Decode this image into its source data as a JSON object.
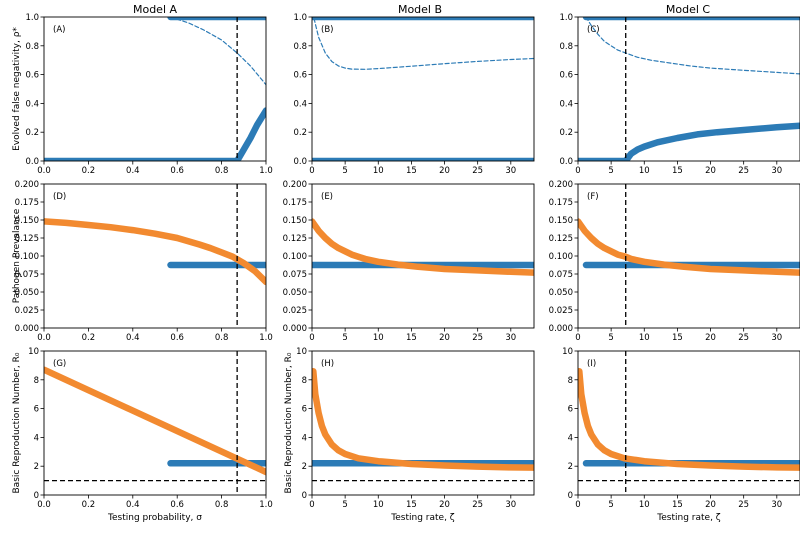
{
  "figure": {
    "column_titles": [
      "Model A",
      "Model B",
      "Model C"
    ]
  },
  "colors": {
    "blue": "#2c7bb6",
    "orange": "#f28a30",
    "black": "#000000"
  },
  "chart_data": [
    {
      "type": "line",
      "panel_label": "(A)",
      "title": "Model A",
      "xlabel": "",
      "ylabel": "Evolved false negativity, ρ*",
      "xlim": [
        0,
        1
      ],
      "ylim": [
        0,
        1
      ],
      "xticks": [
        0,
        0.2,
        0.4,
        0.6,
        0.8,
        1.0
      ],
      "xtick_labels": [
        "0.0",
        "0.2",
        "0.4",
        "0.6",
        "0.8",
        "1.0"
      ],
      "yticks": [
        0,
        0.2,
        0.4,
        0.6,
        0.8,
        1.0
      ],
      "ytick_labels": [
        "0.0",
        "0.2",
        "0.4",
        "0.6",
        "0.8",
        "1.0"
      ],
      "vline": 0.87,
      "series": [
        {
          "name": "stable-upper",
          "style": "thick",
          "color": "blue",
          "x": [
            0.57,
            1.0
          ],
          "y": [
            1.0,
            1.0
          ]
        },
        {
          "name": "stable-zero",
          "style": "thick",
          "color": "blue",
          "x": [
            0.0,
            0.87
          ],
          "y": [
            0.0,
            0.0
          ]
        },
        {
          "name": "stable-interior",
          "style": "thick",
          "color": "blue",
          "x": [
            0.87,
            0.9,
            0.93,
            0.96,
            1.0
          ],
          "y": [
            0.0,
            0.08,
            0.16,
            0.25,
            0.35
          ]
        },
        {
          "name": "unstable",
          "style": "dashed",
          "color": "blue",
          "x": [
            0.57,
            0.65,
            0.72,
            0.8,
            0.87,
            0.93,
            1.0
          ],
          "y": [
            1.0,
            0.96,
            0.91,
            0.84,
            0.75,
            0.66,
            0.53
          ]
        }
      ]
    },
    {
      "type": "line",
      "panel_label": "(B)",
      "title": "Model B",
      "xlabel": "",
      "ylabel": "",
      "xlim": [
        0,
        33.5
      ],
      "ylim": [
        0,
        1
      ],
      "xticks": [
        0,
        5,
        10,
        15,
        20,
        25,
        30
      ],
      "xtick_labels": [
        "0",
        "5",
        "10",
        "15",
        "20",
        "25",
        "30"
      ],
      "yticks": [
        0,
        0.2,
        0.4,
        0.6,
        0.8,
        1.0
      ],
      "ytick_labels": [
        "0.0",
        "0.2",
        "0.4",
        "0.6",
        "0.8",
        "1.0"
      ],
      "series": [
        {
          "name": "stable-upper",
          "style": "thick",
          "color": "blue",
          "x": [
            0,
            33.5
          ],
          "y": [
            1.0,
            1.0
          ]
        },
        {
          "name": "stable-zero",
          "style": "thick",
          "color": "blue",
          "x": [
            0,
            33.5
          ],
          "y": [
            0.0,
            0.0
          ]
        },
        {
          "name": "unstable",
          "style": "dashed",
          "color": "blue",
          "x": [
            0.3,
            1,
            2,
            3,
            4,
            5,
            6,
            8,
            10,
            15,
            20,
            25,
            30,
            33.5
          ],
          "y": [
            0.99,
            0.86,
            0.75,
            0.69,
            0.66,
            0.645,
            0.638,
            0.637,
            0.642,
            0.658,
            0.676,
            0.692,
            0.705,
            0.712
          ]
        }
      ]
    },
    {
      "type": "line",
      "panel_label": "(C)",
      "title": "Model C",
      "xlabel": "",
      "ylabel": "",
      "xlim": [
        0,
        33.5
      ],
      "ylim": [
        0,
        1
      ],
      "xticks": [
        0,
        5,
        10,
        15,
        20,
        25,
        30
      ],
      "xtick_labels": [
        "0",
        "5",
        "10",
        "15",
        "20",
        "25",
        "30"
      ],
      "yticks": [
        0,
        0.2,
        0.4,
        0.6,
        0.8,
        1.0
      ],
      "ytick_labels": [
        "0.0",
        "0.2",
        "0.4",
        "0.6",
        "0.8",
        "1.0"
      ],
      "vline": 7.2,
      "series": [
        {
          "name": "stable-upper",
          "style": "thick",
          "color": "blue",
          "x": [
            1.2,
            33.5
          ],
          "y": [
            1.0,
            1.0
          ]
        },
        {
          "name": "stable-zero",
          "style": "thick",
          "color": "blue",
          "x": [
            0,
            7.2
          ],
          "y": [
            0.0,
            0.0
          ]
        },
        {
          "name": "stable-interior",
          "style": "thick",
          "color": "blue",
          "x": [
            7.2,
            8,
            9,
            10,
            12,
            15,
            18,
            21,
            25,
            30,
            33.5
          ],
          "y": [
            0.0,
            0.05,
            0.08,
            0.1,
            0.13,
            0.16,
            0.185,
            0.2,
            0.215,
            0.235,
            0.245
          ]
        },
        {
          "name": "unstable",
          "style": "dashed",
          "color": "blue",
          "x": [
            1.2,
            2,
            3,
            4,
            5,
            6,
            7.2,
            9,
            11,
            14,
            17,
            20,
            25,
            30,
            33.5
          ],
          "y": [
            1.0,
            0.94,
            0.88,
            0.83,
            0.8,
            0.77,
            0.75,
            0.72,
            0.7,
            0.68,
            0.66,
            0.645,
            0.63,
            0.615,
            0.605
          ]
        }
      ]
    },
    {
      "type": "line",
      "panel_label": "(D)",
      "xlabel": "",
      "ylabel": "Pathogen Prevalance",
      "xlim": [
        0,
        1
      ],
      "ylim": [
        0,
        0.2
      ],
      "xticks": [
        0,
        0.2,
        0.4,
        0.6,
        0.8,
        1.0
      ],
      "xtick_labels": [
        "0.0",
        "0.2",
        "0.4",
        "0.6",
        "0.8",
        "1.0"
      ],
      "yticks": [
        0,
        0.025,
        0.05,
        0.075,
        0.1,
        0.125,
        0.15,
        0.175,
        0.2
      ],
      "ytick_labels": [
        "0.000",
        "0.025",
        "0.050",
        "0.075",
        "0.100",
        "0.125",
        "0.150",
        "0.175",
        "0.200"
      ],
      "vline": 0.87,
      "series": [
        {
          "name": "blue-plateau",
          "style": "thick",
          "color": "blue",
          "x": [
            0.57,
            1.0
          ],
          "y": [
            0.0875,
            0.0875
          ]
        },
        {
          "name": "orange-curve",
          "style": "thick",
          "color": "orange",
          "x": [
            0,
            0.1,
            0.2,
            0.3,
            0.4,
            0.5,
            0.6,
            0.7,
            0.75,
            0.8,
            0.85,
            0.9,
            0.95,
            1.0
          ],
          "y": [
            0.148,
            0.146,
            0.143,
            0.14,
            0.136,
            0.131,
            0.125,
            0.116,
            0.111,
            0.105,
            0.099,
            0.09,
            0.079,
            0.064
          ]
        }
      ]
    },
    {
      "type": "line",
      "panel_label": "(E)",
      "xlabel": "",
      "ylabel": "",
      "xlim": [
        0,
        33.5
      ],
      "ylim": [
        0,
        0.2
      ],
      "xticks": [
        0,
        5,
        10,
        15,
        20,
        25,
        30
      ],
      "xtick_labels": [
        "0",
        "5",
        "10",
        "15",
        "20",
        "25",
        "30"
      ],
      "yticks": [
        0,
        0.025,
        0.05,
        0.075,
        0.1,
        0.125,
        0.15,
        0.175,
        0.2
      ],
      "ytick_labels": [
        "0.000",
        "0.025",
        "0.050",
        "0.075",
        "0.100",
        "0.125",
        "0.150",
        "0.175",
        "0.200"
      ],
      "series": [
        {
          "name": "blue-plateau",
          "style": "thick",
          "color": "blue",
          "x": [
            0,
            33.5
          ],
          "y": [
            0.0875,
            0.0875
          ]
        },
        {
          "name": "orange-curve",
          "style": "thick",
          "color": "orange",
          "x": [
            0,
            1,
            2,
            3,
            4,
            6,
            8,
            10,
            13,
            16,
            20,
            25,
            30,
            33.5
          ],
          "y": [
            0.148,
            0.135,
            0.125,
            0.117,
            0.111,
            0.102,
            0.096,
            0.092,
            0.088,
            0.085,
            0.082,
            0.08,
            0.078,
            0.077
          ]
        }
      ]
    },
    {
      "type": "line",
      "panel_label": "(F)",
      "xlabel": "",
      "ylabel": "",
      "xlim": [
        0,
        33.5
      ],
      "ylim": [
        0,
        0.2
      ],
      "xticks": [
        0,
        5,
        10,
        15,
        20,
        25,
        30
      ],
      "xtick_labels": [
        "0",
        "5",
        "10",
        "15",
        "20",
        "25",
        "30"
      ],
      "yticks": [
        0,
        0.025,
        0.05,
        0.075,
        0.1,
        0.125,
        0.15,
        0.175,
        0.2
      ],
      "ytick_labels": [
        "0.000",
        "0.025",
        "0.050",
        "0.075",
        "0.100",
        "0.125",
        "0.150",
        "0.175",
        "0.200"
      ],
      "vline": 7.2,
      "series": [
        {
          "name": "blue-plateau",
          "style": "thick",
          "color": "blue",
          "x": [
            1.2,
            33.5
          ],
          "y": [
            0.0875,
            0.0875
          ]
        },
        {
          "name": "orange-curve",
          "style": "thick",
          "color": "orange",
          "x": [
            0,
            1,
            2,
            3,
            4,
            6,
            7.2,
            8,
            10,
            13,
            16,
            20,
            25,
            30,
            33.5
          ],
          "y": [
            0.148,
            0.135,
            0.125,
            0.117,
            0.111,
            0.102,
            0.099,
            0.096,
            0.092,
            0.088,
            0.085,
            0.082,
            0.08,
            0.078,
            0.077
          ]
        }
      ]
    },
    {
      "type": "line",
      "panel_label": "(G)",
      "xlabel": "Testing probability, σ",
      "ylabel": "Basic Reproduction Number, R₀",
      "xlim": [
        0,
        1
      ],
      "ylim": [
        0,
        10
      ],
      "xticks": [
        0,
        0.2,
        0.4,
        0.6,
        0.8,
        1.0
      ],
      "xtick_labels": [
        "0.0",
        "0.2",
        "0.4",
        "0.6",
        "0.8",
        "1.0"
      ],
      "yticks": [
        0,
        2,
        4,
        6,
        8,
        10
      ],
      "ytick_labels": [
        "0",
        "2",
        "4",
        "6",
        "8",
        "10"
      ],
      "vline": 0.87,
      "hline": 1.0,
      "series": [
        {
          "name": "blue-plateau",
          "style": "thick",
          "color": "blue",
          "x": [
            0.57,
            1.0
          ],
          "y": [
            2.2,
            2.2
          ]
        },
        {
          "name": "orange-line",
          "style": "thick",
          "color": "orange",
          "x": [
            0,
            1.0
          ],
          "y": [
            8.7,
            1.6
          ]
        }
      ]
    },
    {
      "type": "line",
      "panel_label": "(H)",
      "xlabel": "Testing rate, ζ",
      "ylabel": "Basic Reproduction Number, R₀",
      "xlim": [
        0,
        33.5
      ],
      "ylim": [
        0,
        10
      ],
      "xticks": [
        0,
        5,
        10,
        15,
        20,
        25,
        30
      ],
      "xtick_labels": [
        "0",
        "5",
        "10",
        "15",
        "20",
        "25",
        "30"
      ],
      "yticks": [
        0,
        2,
        4,
        6,
        8,
        10
      ],
      "ytick_labels": [
        "0",
        "2",
        "4",
        "6",
        "8",
        "10"
      ],
      "hline": 1.0,
      "series": [
        {
          "name": "blue-plateau",
          "style": "thick",
          "color": "blue",
          "x": [
            0,
            33.5
          ],
          "y": [
            2.2,
            2.2
          ]
        },
        {
          "name": "orange-curve",
          "style": "thick",
          "color": "orange",
          "x": [
            0.2,
            0.5,
            1,
            1.5,
            2,
            3,
            4,
            5,
            7,
            10,
            15,
            20,
            25,
            30,
            33.5
          ],
          "y": [
            8.6,
            7.0,
            5.7,
            4.8,
            4.2,
            3.5,
            3.1,
            2.85,
            2.55,
            2.35,
            2.15,
            2.05,
            1.97,
            1.92,
            1.9
          ]
        }
      ]
    },
    {
      "type": "line",
      "panel_label": "(I)",
      "xlabel": "Testing rate, ζ",
      "ylabel": "",
      "xlim": [
        0,
        33.5
      ],
      "ylim": [
        0,
        10
      ],
      "xticks": [
        0,
        5,
        10,
        15,
        20,
        25,
        30
      ],
      "xtick_labels": [
        "0",
        "5",
        "10",
        "15",
        "20",
        "25",
        "30"
      ],
      "yticks": [
        0,
        2,
        4,
        6,
        8,
        10
      ],
      "ytick_labels": [
        "0",
        "2",
        "4",
        "6",
        "8",
        "10"
      ],
      "vline": 7.2,
      "hline": 1.0,
      "series": [
        {
          "name": "blue-plateau",
          "style": "thick",
          "color": "blue",
          "x": [
            1.2,
            33.5
          ],
          "y": [
            2.2,
            2.2
          ]
        },
        {
          "name": "orange-curve",
          "style": "thick",
          "color": "orange",
          "x": [
            0.2,
            0.5,
            1,
            1.5,
            2,
            3,
            4,
            5,
            7,
            10,
            15,
            20,
            25,
            30,
            33.5
          ],
          "y": [
            8.6,
            7.0,
            5.7,
            4.8,
            4.2,
            3.5,
            3.1,
            2.85,
            2.55,
            2.35,
            2.15,
            2.05,
            1.97,
            1.92,
            1.9
          ]
        }
      ]
    }
  ]
}
